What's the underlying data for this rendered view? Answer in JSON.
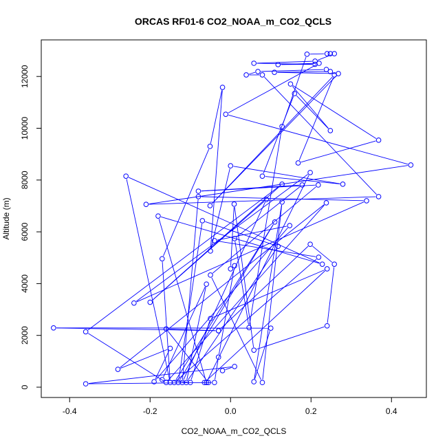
{
  "chart_data": {
    "type": "line",
    "title": "ORCAS RF01-6 CO2_NOAA_m_CO2_QCLS",
    "xlabel": "CO2_NOAA_m_CO2_QCLS",
    "ylabel": "Altitude (m)",
    "xlim": [
      -0.4705,
      0.4867
    ],
    "ylim": [
      -398,
      13413
    ],
    "xticks": [
      -0.4,
      -0.2,
      0.0,
      0.2,
      0.4
    ],
    "xtick_labels": [
      "-0.4",
      "-0.2",
      "0.0",
      "0.2",
      "0.4"
    ],
    "yticks": [
      0,
      2000,
      4000,
      6000,
      8000,
      10000,
      12000
    ],
    "ytick_labels": [
      "0",
      "2000",
      "4000",
      "6000",
      "8000",
      "10000",
      "12000"
    ],
    "grid": false,
    "series": [
      {
        "name": "CO2_NOAA_m_CO2_QCLS",
        "color": "#0000ff",
        "marker": "open-circle",
        "points": [
          [
            -0.02,
            640
          ],
          [
            0.01,
            800
          ],
          [
            -0.36,
            130
          ],
          [
            -0.04,
            180
          ],
          [
            -0.03,
            1160
          ],
          [
            0.01,
            4690
          ],
          [
            0.0,
            4570
          ],
          [
            0.009,
            7070
          ],
          [
            0.058,
            1430
          ],
          [
            0.24,
            2370
          ],
          [
            0.258,
            4750
          ],
          [
            0.198,
            5520
          ],
          [
            -0.03,
            2180
          ],
          [
            -0.44,
            2290
          ],
          [
            0.1,
            2280
          ],
          [
            0.058,
            210
          ],
          [
            0.128,
            7150
          ],
          [
            0.079,
            180
          ],
          [
            -0.05,
            4330
          ],
          [
            0.218,
            7810
          ],
          [
            -0.08,
            7570
          ],
          [
            0.178,
            7810
          ],
          [
            0.01,
            5740
          ],
          [
            0.046,
            2300
          ],
          [
            0.128,
            10070
          ],
          [
            0.19,
            12860
          ],
          [
            0.24,
            12880
          ],
          [
            0.248,
            12880
          ],
          [
            0.258,
            12880
          ],
          [
            0.21,
            12590
          ],
          [
            0.058,
            12510
          ],
          [
            0.21,
            12470
          ],
          [
            0.118,
            12460
          ],
          [
            0.22,
            12510
          ],
          [
            -0.012,
            10540
          ],
          [
            0.448,
            8580
          ],
          [
            -0.21,
            7060
          ],
          [
            0.368,
            7360
          ],
          [
            0.079,
            12060
          ],
          [
            0.039,
            12060
          ],
          [
            0.068,
            12190
          ],
          [
            0.238,
            12270
          ],
          [
            0.248,
            12190
          ],
          [
            0.109,
            12160
          ],
          [
            0.268,
            12110
          ],
          [
            -0.051,
            7010
          ],
          [
            0.258,
            12060
          ],
          [
            0.168,
            8660
          ],
          [
            0.368,
            9540
          ],
          [
            0.149,
            11710
          ],
          [
            0.248,
            9910
          ],
          [
            0.159,
            11340
          ],
          [
            0.079,
            8150
          ],
          [
            0.279,
            7840
          ],
          [
            0.0,
            8550
          ],
          [
            -0.05,
            5260
          ],
          [
            -0.02,
            11580
          ],
          [
            -0.051,
            9300
          ],
          [
            -0.17,
            4960
          ],
          [
            -0.15,
            180
          ],
          [
            -0.26,
            8150
          ],
          [
            0.228,
            4750
          ],
          [
            -0.18,
            6610
          ],
          [
            -0.06,
            180
          ],
          [
            0.198,
            8290
          ],
          [
            -0.24,
            3250
          ],
          [
            0.338,
            7200
          ],
          [
            -0.08,
            7360
          ],
          [
            -0.12,
            180
          ],
          [
            0.089,
            7250
          ],
          [
            -0.2,
            3280
          ],
          [
            0.128,
            7840
          ],
          [
            -0.36,
            2140
          ],
          [
            -0.16,
            180
          ],
          [
            0.238,
            7120
          ],
          [
            -0.28,
            690
          ],
          [
            -0.15,
            1500
          ],
          [
            -0.19,
            210
          ],
          [
            0.147,
            6240
          ],
          [
            -0.04,
            5660
          ],
          [
            0.219,
            5020
          ],
          [
            -0.14,
            180
          ],
          [
            0.11,
            6380
          ],
          [
            -0.13,
            180
          ],
          [
            -0.07,
            6430
          ],
          [
            0.118,
            5440
          ],
          [
            -0.11,
            180
          ],
          [
            -0.06,
            3980
          ],
          [
            -0.17,
            290
          ],
          [
            -0.1,
            180
          ],
          [
            -0.05,
            2650
          ],
          [
            0.24,
            4570
          ],
          [
            -0.065,
            180
          ],
          [
            -0.055,
            180
          ],
          [
            -0.16,
            2250
          ],
          [
            -0.03,
            2180
          ]
        ]
      }
    ]
  }
}
